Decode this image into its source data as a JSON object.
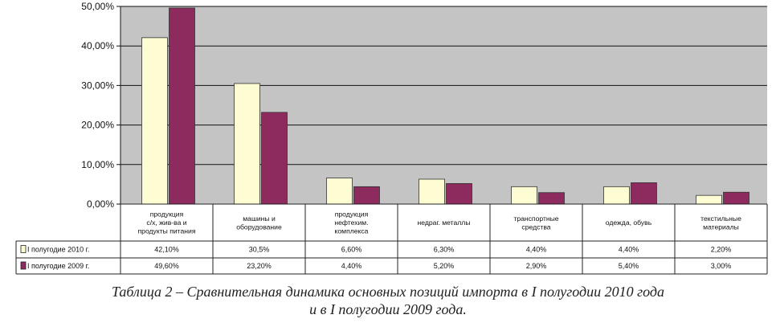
{
  "chart_data": {
    "type": "bar",
    "ylim": [
      0,
      50
    ],
    "yticks": [
      "0,00%",
      "10,00%",
      "20,00%",
      "30,00%",
      "40,00%",
      "50,00%"
    ],
    "grid": true,
    "categories": [
      [
        "продукция",
        "с/х, жив-ва и",
        "продукты питания"
      ],
      [
        "машины и",
        "оборудование"
      ],
      [
        "продукция",
        "нефтехим.",
        "комплекса"
      ],
      [
        "недраг. металлы"
      ],
      [
        "транспортные",
        "средства"
      ],
      [
        "одежда, обувь"
      ],
      [
        "текстильные",
        "материалы"
      ]
    ],
    "series": [
      {
        "name": "I полугодие 2010  г.",
        "color": "#fdfcd2",
        "values": [
          42.1,
          30.5,
          6.6,
          6.3,
          4.4,
          4.4,
          2.2
        ],
        "labels": [
          "42,10%",
          "30,5%",
          "6,60%",
          "6,30%",
          "4,40%",
          "4,40%",
          "2,20%"
        ]
      },
      {
        "name": "I полугодие 2009  г.",
        "color": "#8d2a5e",
        "values": [
          49.6,
          23.2,
          4.4,
          5.2,
          2.9,
          5.4,
          3.0
        ],
        "labels": [
          "49,60%",
          "23,20%",
          "4,40%",
          "5,20%",
          "2,90%",
          "5,40%",
          "3,00%"
        ]
      }
    ]
  },
  "caption": {
    "line1": "Таблица 2 – Сравнительная динамика основных позиций импорта в I полугодии 2010 года",
    "line2": "и в I полугодии 2009 года."
  }
}
